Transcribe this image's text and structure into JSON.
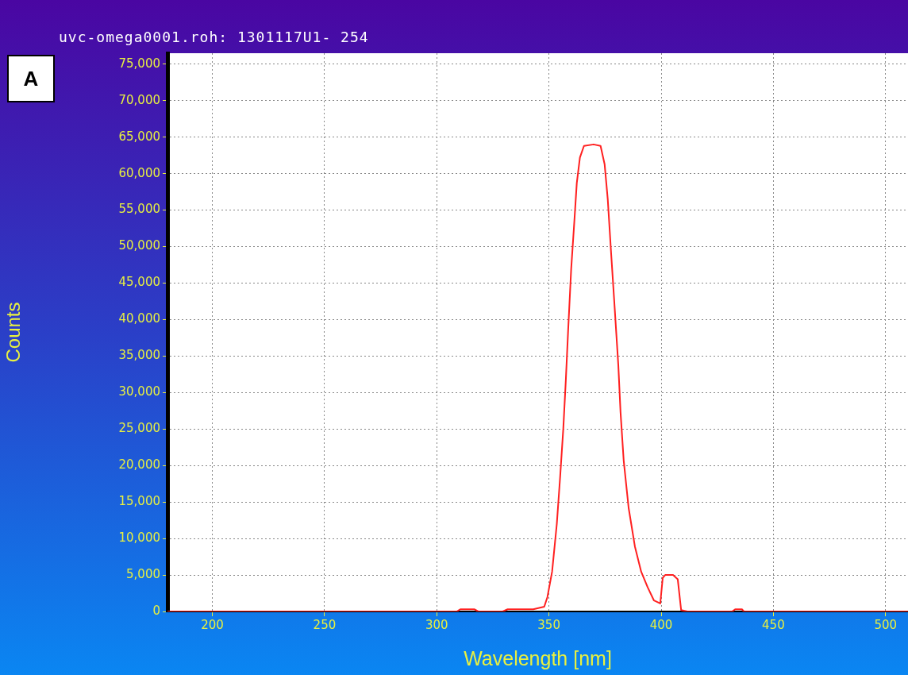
{
  "chart_data": {
    "type": "line",
    "title": "uvc-omega0001.roh: 1301117U1- 254",
    "xlabel": "Wavelength [nm]",
    "ylabel": "Counts",
    "annotations": [
      "A"
    ],
    "x": [
      180,
      308.9,
      310.5,
      316.7,
      318.5,
      329.4,
      331.6,
      343,
      347.9,
      349.3,
      351.4,
      353.5,
      355,
      356.4,
      357.5,
      358.5,
      359.9,
      361.3,
      362.4,
      363.8,
      365.6,
      369.9,
      373,
      374.8,
      376.2,
      377.7,
      379.1,
      380.9,
      381.9,
      383.3,
      385.5,
      388.3,
      391.1,
      394,
      396.8,
      399.6,
      400.7,
      401.8,
      405.3,
      407.4,
      408.9,
      411.7,
      431.6,
      433,
      436,
      436.9,
      510
    ],
    "values": [
      0,
      0,
      300,
      300,
      0,
      0,
      300,
      300,
      650,
      1960,
      5450,
      12000,
      18500,
      25100,
      31600,
      38200,
      46900,
      53400,
      58700,
      62200,
      63800,
      64000,
      63800,
      61300,
      56500,
      49100,
      42500,
      33800,
      27300,
      20700,
      14200,
      8900,
      5450,
      3300,
      1500,
      1100,
      4600,
      5000,
      5000,
      4400,
      200,
      0,
      0,
      300,
      300,
      0,
      0
    ],
    "color": "#ff2020",
    "marker": "none",
    "line_style": "solid",
    "grid": true,
    "xlim": [
      180,
      510
    ],
    "xticks": [
      200,
      250,
      300,
      350,
      400,
      450,
      500
    ],
    "ylim": [
      0,
      76500
    ],
    "yticks": [
      0,
      {
        "value": 5000,
        "label": "5,000"
      },
      {
        "value": 10000,
        "label": "10,000"
      },
      {
        "value": 15000,
        "label": "15,000"
      },
      {
        "value": 20000,
        "label": "20,000"
      },
      {
        "value": 25000,
        "label": "25,000"
      },
      {
        "value": 30000,
        "label": "30,000"
      },
      {
        "value": 35000,
        "label": "35,000"
      },
      {
        "value": 40000,
        "label": "40,000"
      },
      {
        "value": 45000,
        "label": "45,000"
      },
      {
        "value": 50000,
        "label": "50,000"
      },
      {
        "value": 55000,
        "label": "55,000"
      },
      {
        "value": 60000,
        "label": "60,000"
      },
      {
        "value": 65000,
        "label": "65,000"
      },
      {
        "value": 70000,
        "label": "70,000"
      },
      {
        "value": 75000,
        "label": "75,000"
      }
    ]
  }
}
